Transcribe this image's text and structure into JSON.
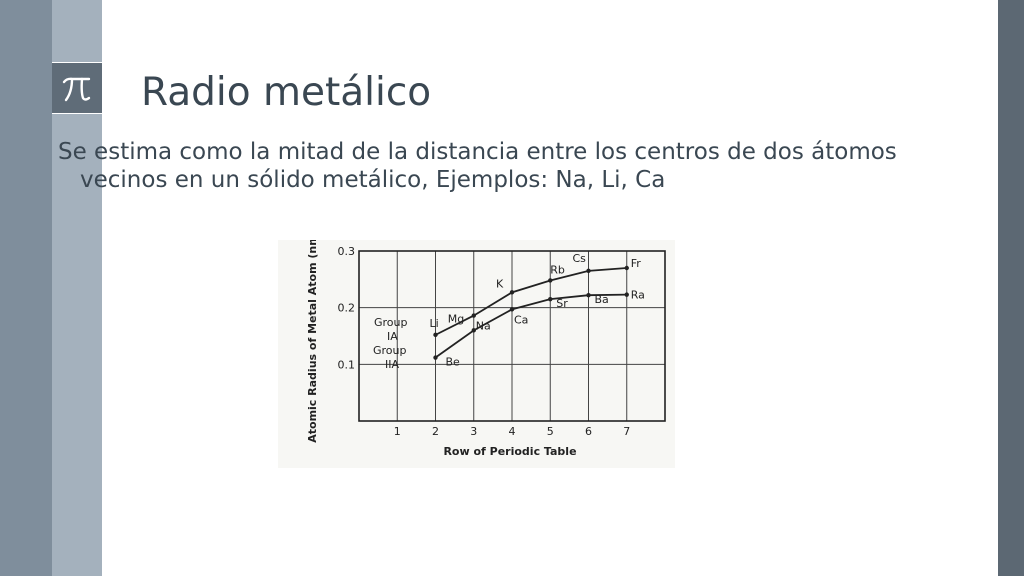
{
  "slide": {
    "title": "Radio metálico",
    "body": "Se estima como la mitad de la distancia entre los centros de dos átomos vecinos en un sólido metálico, Ejemplos: Na, Li, Ca",
    "logo_icon": "pi-icon"
  },
  "colors": {
    "band_left_outer": "#7f8e9c",
    "band_left_inner": "#a4b1bd",
    "band_right": "#5c6873",
    "logo_bg": "#5f6c78",
    "text": "#3a4752"
  },
  "chart_data": {
    "type": "line",
    "xlabel": "Row of Periodic Table",
    "ylabel": "Atomic Radius of Metal Atom (nm)",
    "xlim": [
      0,
      8
    ],
    "ylim": [
      0,
      0.3
    ],
    "x_ticks": [
      "1",
      "2",
      "3",
      "4",
      "5",
      "6",
      "7"
    ],
    "y_ticks": [
      "0.1",
      "0.2",
      "0.3"
    ],
    "grid": true,
    "series": [
      {
        "name": "Group IA",
        "x": [
          2,
          3,
          4,
          5,
          6,
          7
        ],
        "values": [
          0.152,
          0.186,
          0.227,
          0.248,
          0.265,
          0.27
        ],
        "labels": [
          "Li",
          "Na",
          "K",
          "Rb",
          "Cs",
          "Fr"
        ]
      },
      {
        "name": "Group IIA",
        "x": [
          2,
          3,
          4,
          5,
          6,
          7
        ],
        "values": [
          0.112,
          0.16,
          0.197,
          0.215,
          0.222,
          0.223
        ],
        "labels": [
          "Be",
          "Mg",
          "Ca",
          "Sr",
          "Ba",
          "Ra"
        ]
      }
    ],
    "group_labels": {
      "ia_line1": "Group",
      "ia_line2": "IA",
      "iia_line1": "Group",
      "iia_line2": "IIA"
    }
  }
}
